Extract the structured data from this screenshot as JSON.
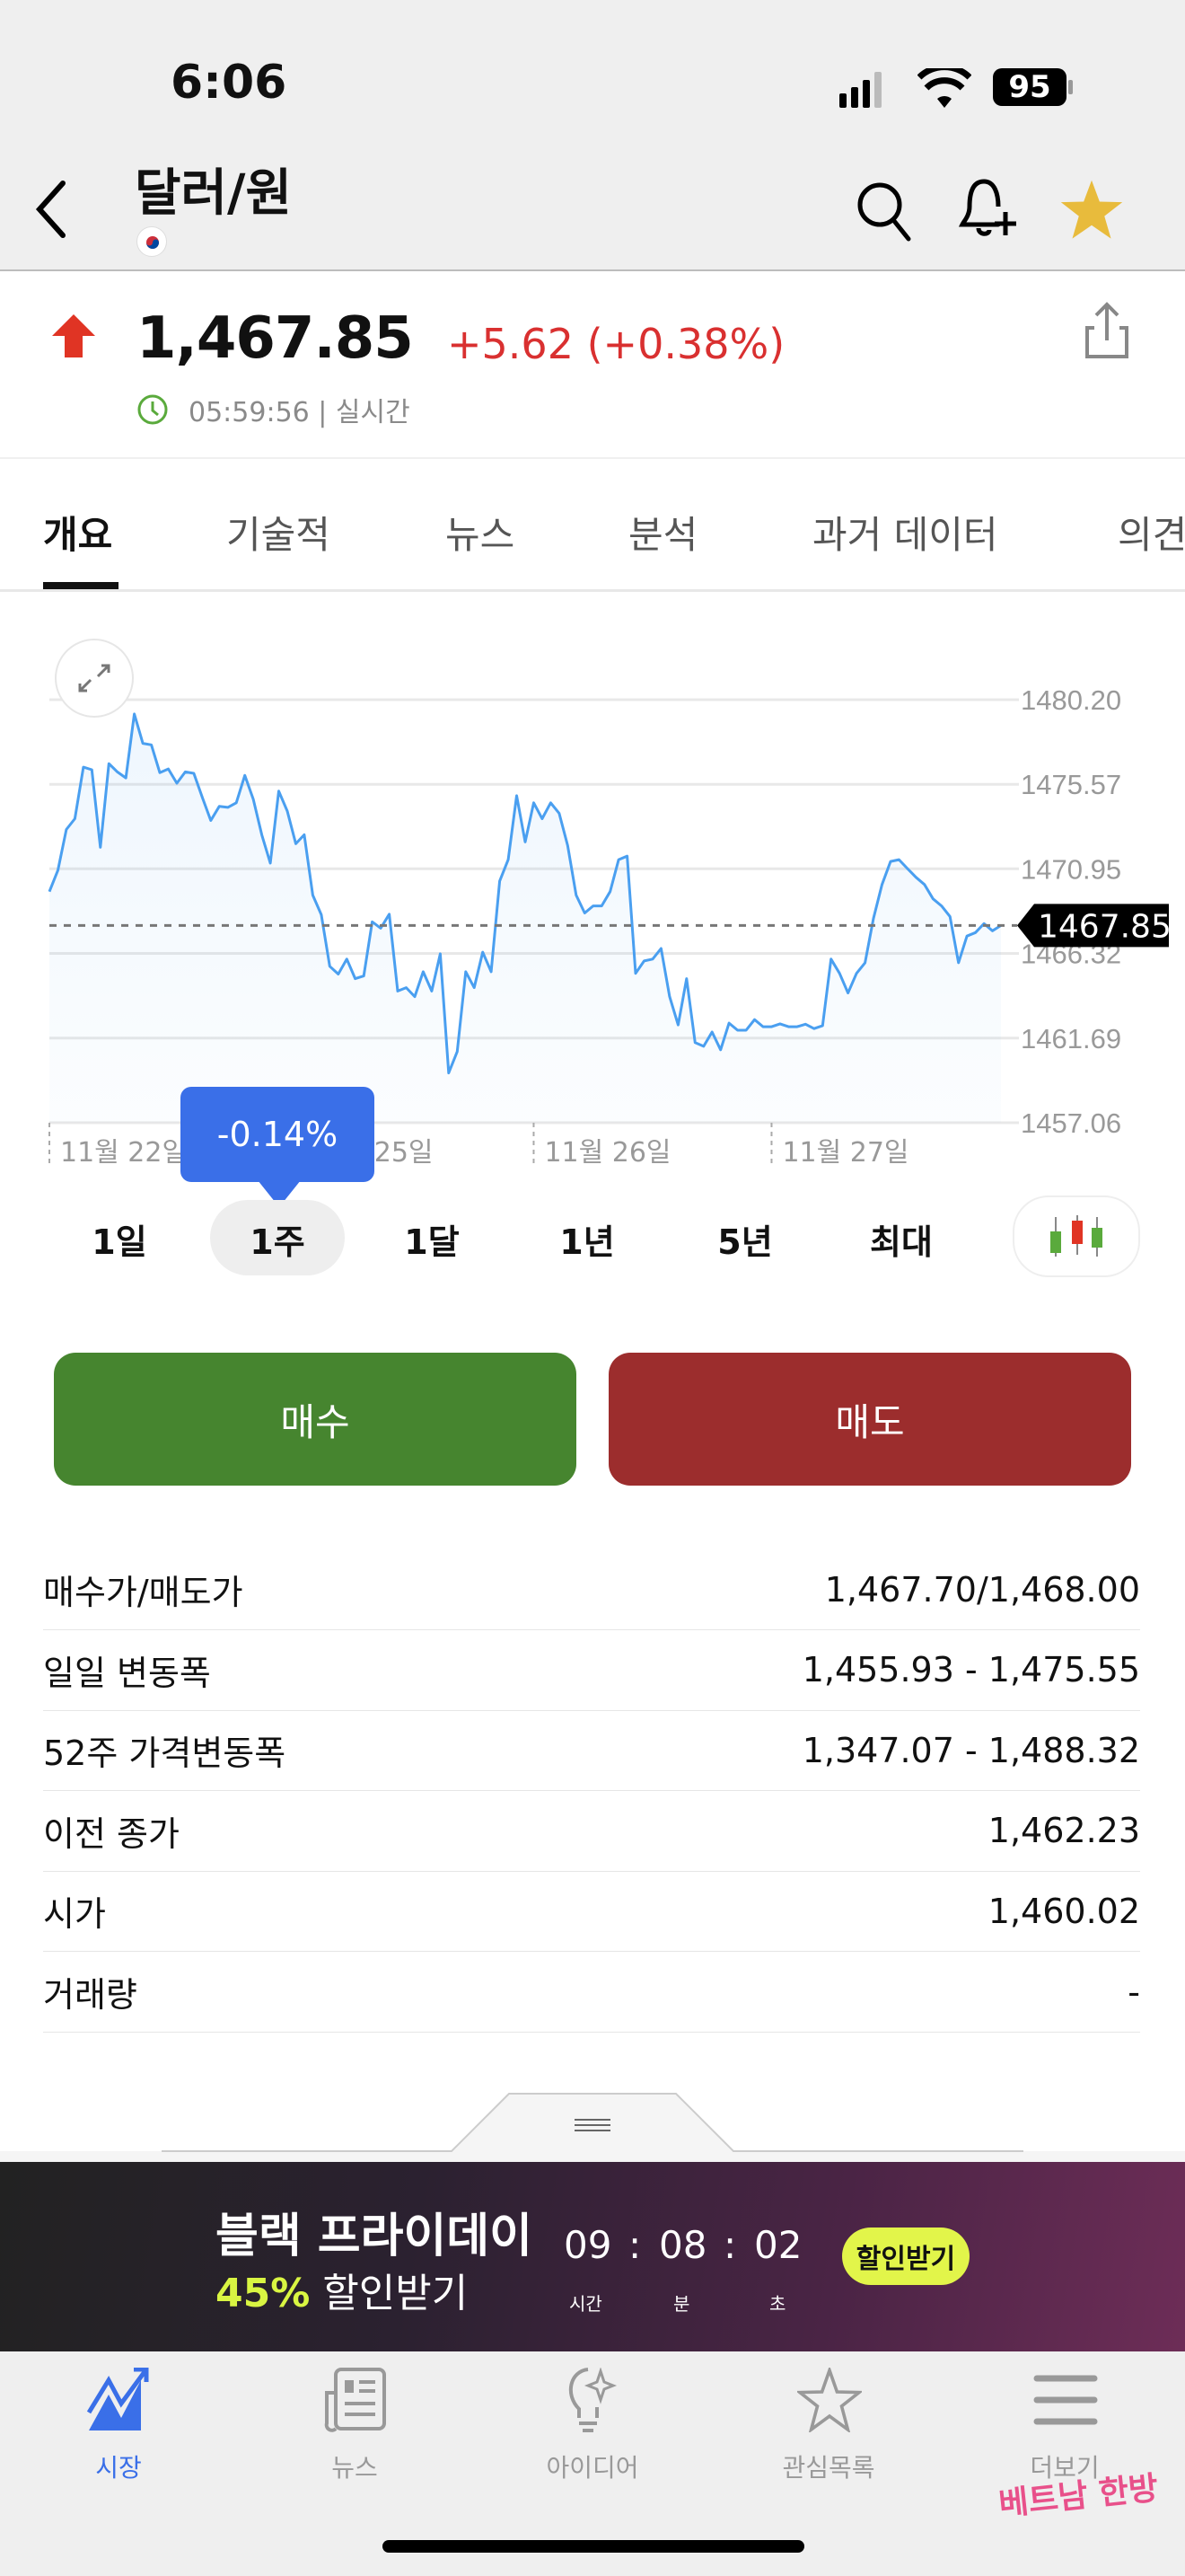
{
  "status_bar": {
    "time": "6:06",
    "battery": "95"
  },
  "header": {
    "title": "달러/원",
    "flag": "south-korea-flag",
    "icons": [
      "back-chevron-icon",
      "search-icon",
      "bell-plus-icon",
      "star-icon"
    ],
    "star_color": "#e8bb3c"
  },
  "quote": {
    "price": "1,467.85",
    "change": "+5.62 (+0.38%)",
    "direction": "up",
    "time": "05:59:56 | 실시간",
    "up_color": "#d93030"
  },
  "tabs": [
    {
      "label": "개요",
      "active": true
    },
    {
      "label": "기술적"
    },
    {
      "label": "뉴스"
    },
    {
      "label": "분석"
    },
    {
      "label": "과거 데이터"
    },
    {
      "label": "의견"
    }
  ],
  "chart_data": {
    "type": "area",
    "line_color": "#4a9ff0",
    "y_ticks": [
      1480.2,
      1475.57,
      1470.95,
      1466.32,
      1461.69,
      1457.06
    ],
    "ylim": [
      1457.06,
      1480.2
    ],
    "current_value": "1467.85",
    "x_ticks": [
      {
        "label": "11월 22일",
        "index": 0
      },
      {
        "label": "11월 25일",
        "index": 29
      },
      {
        "label": "11월 26일",
        "index": 57
      },
      {
        "label": "11월 27일",
        "index": 85
      }
    ],
    "values": [
      1469.7,
      1470.87,
      1473.1,
      1473.69,
      1476.51,
      1476.37,
      1472.13,
      1476.7,
      1476.25,
      1475.92,
      1479.42,
      1477.81,
      1477.73,
      1476.21,
      1476.41,
      1475.63,
      1476.25,
      1476.17,
      1474.85,
      1473.59,
      1474.37,
      1474.31,
      1474.56,
      1476.06,
      1474.76,
      1472.81,
      1471.26,
      1475.2,
      1474.11,
      1472.32,
      1472.81,
      1469.51,
      1468.44,
      1465.62,
      1465.19,
      1466.01,
      1464.94,
      1465.09,
      1468.05,
      1467.7,
      1468.47,
      1464.26,
      1464.45,
      1463.96,
      1465.32,
      1464.26,
      1466.3,
      1459.78,
      1460.95,
      1465.32,
      1464.45,
      1466.39,
      1465.32,
      1470.28,
      1471.45,
      1474.95,
      1472.42,
      1474.56,
      1473.69,
      1474.56,
      1473.98,
      1472.23,
      1469.51,
      1468.53,
      1468.92,
      1468.92,
      1469.7,
      1471.45,
      1471.64,
      1465.23,
      1465.91,
      1466.01,
      1466.59,
      1463.96,
      1462.41,
      1464.94,
      1461.44,
      1461.24,
      1462.02,
      1461.05,
      1462.51,
      1462.12,
      1462.12,
      1462.7,
      1462.31,
      1462.31,
      1462.47,
      1462.31,
      1462.31,
      1462.45,
      1462.21,
      1462.37,
      1466.01,
      1465.23,
      1464.16,
      1465.23,
      1465.81,
      1468.24,
      1470.09,
      1471.35,
      1471.45,
      1470.96,
      1470.48,
      1470.09,
      1469.31,
      1468.92,
      1468.34,
      1465.81,
      1467.27,
      1467.46,
      1467.95,
      1467.56,
      1467.85
    ],
    "grid": true
  },
  "tooltip": {
    "text": "-0.14%"
  },
  "periods": [
    {
      "label": "1일"
    },
    {
      "label": "1주",
      "active": true
    },
    {
      "label": "1달"
    },
    {
      "label": "1년"
    },
    {
      "label": "5년"
    },
    {
      "label": "최대"
    }
  ],
  "actions": {
    "buy": "매수",
    "sell": "매도",
    "buy_color": "#46852f",
    "sell_color": "#9c2d2d"
  },
  "stats": [
    {
      "label": "매수가/매도가",
      "value": "1,467.70/1,468.00"
    },
    {
      "label": "일일 변동폭",
      "value": "1,455.93 - 1,475.55"
    },
    {
      "label": "52주 가격변동폭",
      "value": "1,347.07 - 1,488.32"
    },
    {
      "label": "이전 종가",
      "value": "1,462.23"
    },
    {
      "label": "시가",
      "value": "1,460.02"
    },
    {
      "label": "거래량",
      "value": "-"
    }
  ],
  "banner": {
    "title": "블랙 프라이데이",
    "pct": "45%",
    "sub": "할인받기",
    "hours": "09",
    "minutes": "08",
    "seconds": "02",
    "hours_label": "시간",
    "minutes_label": "분",
    "seconds_label": "초",
    "sep": ":",
    "cta": "할인받기",
    "cta_color": "#e2f54a"
  },
  "nav": [
    {
      "label": "시장",
      "active": true
    },
    {
      "label": "뉴스"
    },
    {
      "label": "아이디어"
    },
    {
      "label": "관심목록"
    },
    {
      "label": "더보기"
    }
  ],
  "watermark": "베트남 한방"
}
